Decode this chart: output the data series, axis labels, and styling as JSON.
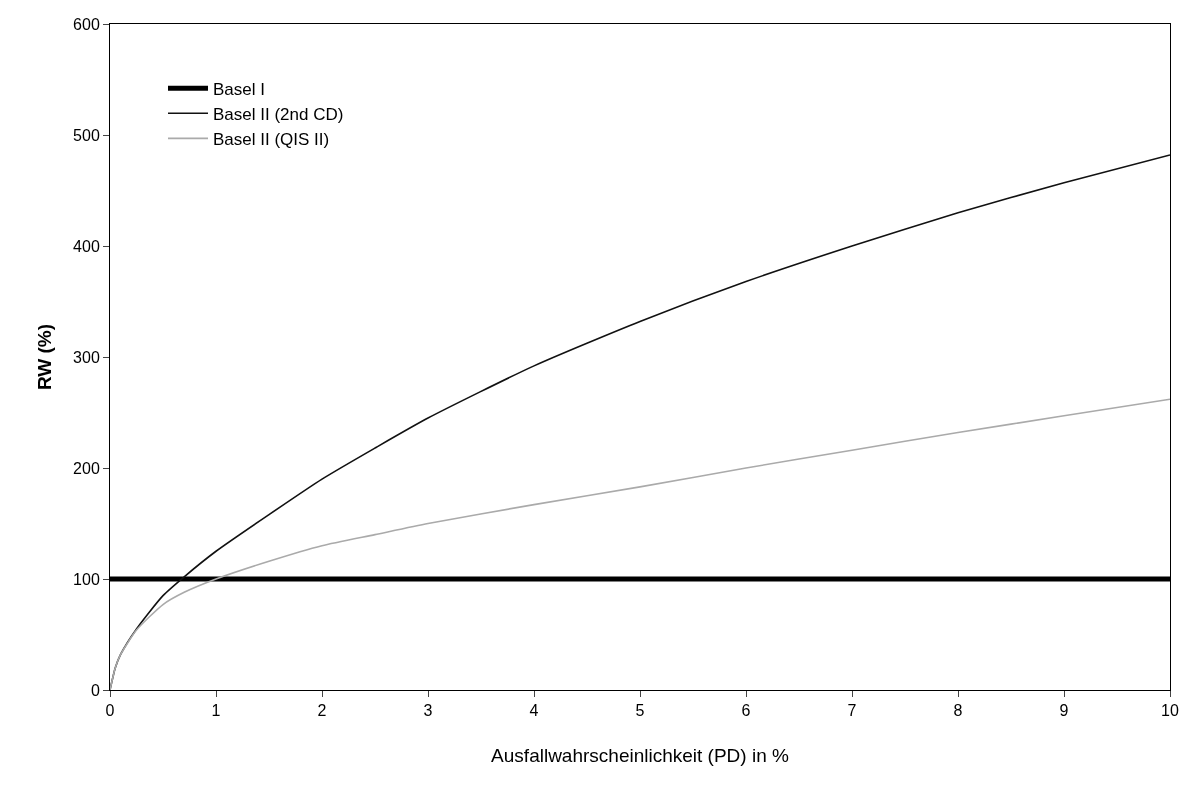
{
  "chart_data": {
    "type": "line",
    "xlabel": "Ausfallwahrscheinlichkeit (PD) in %",
    "ylabel": "RW (%)",
    "xlim": [
      0,
      10
    ],
    "xticks": [
      0,
      1,
      2,
      3,
      4,
      5,
      6,
      7,
      8,
      9,
      10
    ],
    "ylim": [
      0,
      600
    ],
    "yticks": [
      0,
      100,
      200,
      300,
      400,
      500,
      600
    ],
    "legend": "top left",
    "marker": "none",
    "line_style": "solid",
    "series": [
      {
        "name": "Basel I",
        "color": "#000000",
        "x": [
          0,
          10
        ],
        "values": [
          100,
          100
        ]
      },
      {
        "name": "Basel II (2nd CD)",
        "color": "#111111",
        "x": [
          0,
          0.05,
          0.1,
          0.25,
          0.5,
          0.7,
          1,
          1.5,
          2,
          2.5,
          3,
          4,
          5,
          6,
          7,
          8,
          9,
          10
        ],
        "values": [
          0,
          20,
          32,
          55,
          85,
          102,
          125,
          158,
          190,
          218,
          245,
          292,
          332,
          368,
          400,
          430,
          457,
          482
        ]
      },
      {
        "name": "Basel II (QIS II)",
        "color": "#aaaaaa",
        "x": [
          0,
          0.05,
          0.1,
          0.25,
          0.5,
          0.7,
          1,
          1.5,
          2,
          2.5,
          3,
          4,
          5,
          6,
          7,
          8,
          9,
          10
        ],
        "values": [
          0,
          20,
          32,
          54,
          77,
          88,
          100,
          116,
          130,
          140,
          150,
          167,
          183,
          200,
          216,
          232,
          247,
          262
        ]
      }
    ]
  }
}
